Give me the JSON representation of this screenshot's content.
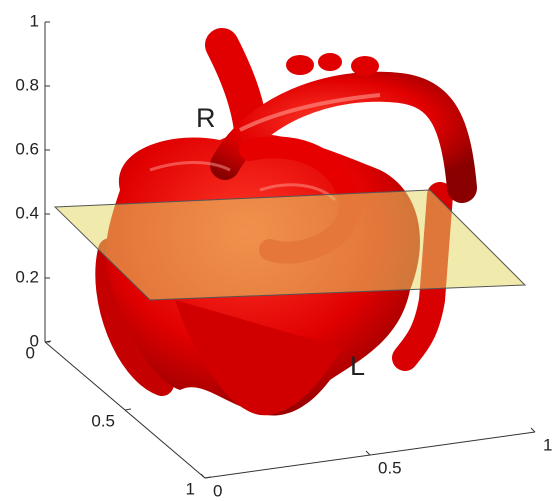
{
  "chart_data": {
    "type": "surface3d",
    "zlim": [
      0,
      1
    ],
    "zticks": [
      0,
      0.2,
      0.4,
      0.6,
      0.8,
      1
    ],
    "ylim": [
      0,
      1
    ],
    "yticks": [
      0,
      0.5,
      1
    ],
    "xlim": [
      0,
      1
    ],
    "xticks": [
      0,
      0.5,
      1
    ],
    "annotations": [
      "R",
      "L"
    ]
  }
}
